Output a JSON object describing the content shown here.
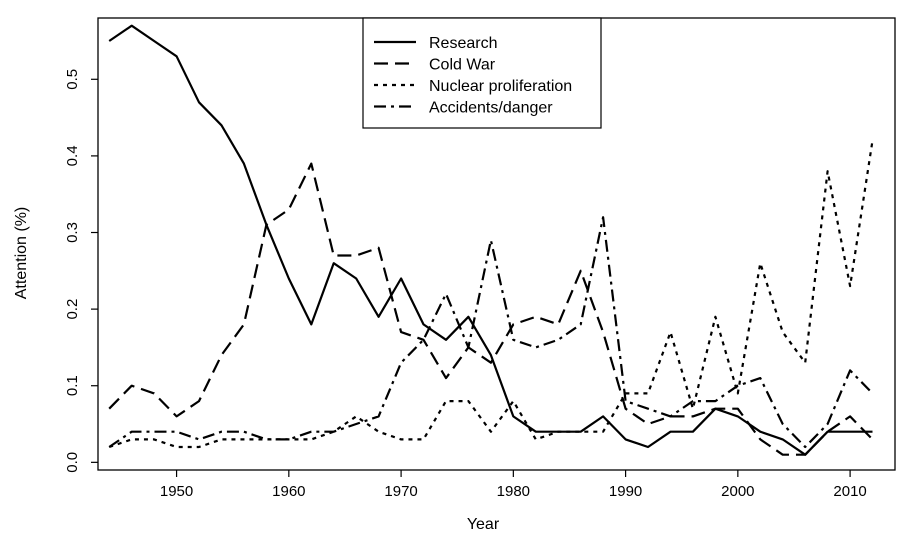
{
  "chart_data": {
    "type": "line",
    "title": "",
    "xlabel": "Year",
    "ylabel": "Attention (%)",
    "xlim": [
      1943,
      2014
    ],
    "ylim": [
      -0.01,
      0.58
    ],
    "x_ticks": [
      1950,
      1960,
      1970,
      1980,
      1990,
      2000,
      2010
    ],
    "y_ticks": [
      0.0,
      0.1,
      0.2,
      0.3,
      0.4,
      0.5
    ],
    "y_tick_labels": [
      "0.0",
      "0.1",
      "0.2",
      "0.3",
      "0.4",
      "0.5"
    ],
    "legend_position": "top-center",
    "grid": false,
    "x": [
      1944,
      1946,
      1948,
      1950,
      1952,
      1954,
      1956,
      1958,
      1960,
      1962,
      1964,
      1966,
      1968,
      1970,
      1972,
      1974,
      1976,
      1978,
      1980,
      1982,
      1984,
      1986,
      1988,
      1990,
      1992,
      1994,
      1996,
      1998,
      2000,
      2002,
      2004,
      2006,
      2008,
      2010,
      2012
    ],
    "series": [
      {
        "name": "Research",
        "style": "solid",
        "values": [
          0.55,
          0.57,
          0.55,
          0.53,
          0.47,
          0.44,
          0.39,
          0.31,
          0.24,
          0.18,
          0.26,
          0.24,
          0.19,
          0.24,
          0.18,
          0.16,
          0.19,
          0.14,
          0.06,
          0.04,
          0.04,
          0.04,
          0.06,
          0.03,
          0.02,
          0.04,
          0.04,
          0.07,
          0.06,
          0.04,
          0.03,
          0.01,
          0.04,
          0.04,
          0.04
        ]
      },
      {
        "name": "Cold War",
        "style": "dashed",
        "values": [
          0.07,
          0.1,
          0.09,
          0.06,
          0.08,
          0.14,
          0.18,
          0.31,
          0.33,
          0.39,
          0.27,
          0.27,
          0.28,
          0.17,
          0.16,
          0.11,
          0.15,
          0.13,
          0.18,
          0.19,
          0.18,
          0.25,
          0.17,
          0.07,
          0.05,
          0.06,
          0.06,
          0.07,
          0.07,
          0.03,
          0.01,
          0.01,
          0.04,
          0.06,
          0.03
        ]
      },
      {
        "name": "Nuclear proliferation",
        "style": "dotted",
        "values": [
          0.02,
          0.03,
          0.03,
          0.02,
          0.02,
          0.03,
          0.03,
          0.03,
          0.03,
          0.03,
          0.04,
          0.06,
          0.04,
          0.03,
          0.03,
          0.08,
          0.08,
          0.04,
          0.08,
          0.03,
          0.04,
          0.04,
          0.04,
          0.09,
          0.09,
          0.17,
          0.07,
          0.19,
          0.09,
          0.26,
          0.17,
          0.13,
          0.38,
          0.23,
          0.42
        ]
      },
      {
        "name": "Accidents/danger",
        "style": "dashdot",
        "values": [
          0.02,
          0.04,
          0.04,
          0.04,
          0.03,
          0.04,
          0.04,
          0.03,
          0.03,
          0.04,
          0.04,
          0.05,
          0.06,
          0.13,
          0.16,
          0.22,
          0.15,
          0.29,
          0.16,
          0.15,
          0.16,
          0.18,
          0.32,
          0.08,
          0.07,
          0.06,
          0.08,
          0.08,
          0.1,
          0.11,
          0.05,
          0.02,
          0.05,
          0.12,
          0.09
        ]
      }
    ]
  }
}
